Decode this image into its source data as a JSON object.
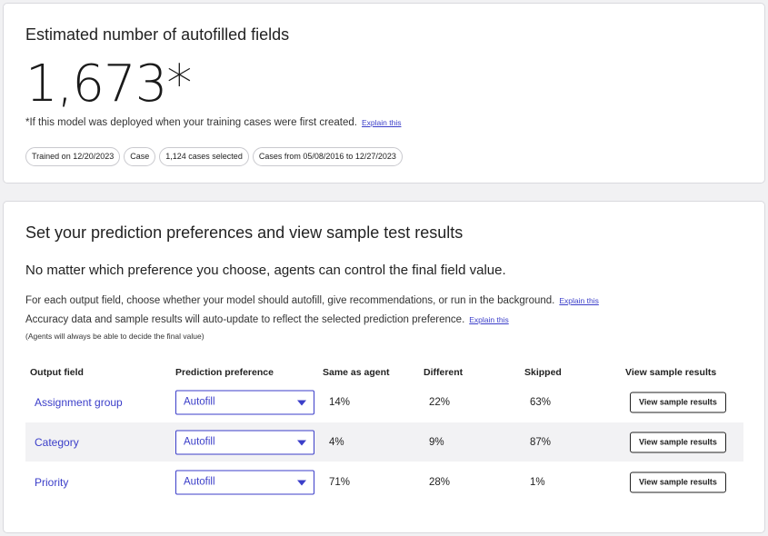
{
  "estimate": {
    "title": "Estimated number of autofilled fields",
    "value": "1,673*",
    "footnote": "*If this model was deployed when your training cases were first created.",
    "explain_label": "Explain this",
    "chips": [
      "Trained on 12/20/2023",
      "Case",
      "1,124 cases selected",
      "Cases from 05/08/2016 to 12/27/2023"
    ]
  },
  "preferences": {
    "title": "Set your prediction preferences and view sample test results",
    "subheading": "No matter which preference you choose, agents can control the final field value.",
    "line1": "For each output field, choose whether your model should autofill, give recommendations, or run in the background.",
    "line2": "Accuracy data and sample results will auto-update to reflect the selected prediction preference.",
    "explain_label": "Explain this",
    "note": "(Agents will always be able to decide the final value)",
    "columns": [
      "Output field",
      "Prediction preference",
      "Same as agent",
      "Different",
      "Skipped",
      "View sample results"
    ],
    "rows": [
      {
        "field": "Assignment group",
        "preference": "Autofill",
        "same": "14%",
        "different": "22%",
        "skipped": "63%",
        "button": "View sample results"
      },
      {
        "field": "Category",
        "preference": "Autofill",
        "same": "4%",
        "different": "9%",
        "skipped": "87%",
        "button": "View sample results"
      },
      {
        "field": "Priority",
        "preference": "Autofill",
        "same": "71%",
        "different": "28%",
        "skipped": "1%",
        "button": "View sample results"
      }
    ]
  }
}
